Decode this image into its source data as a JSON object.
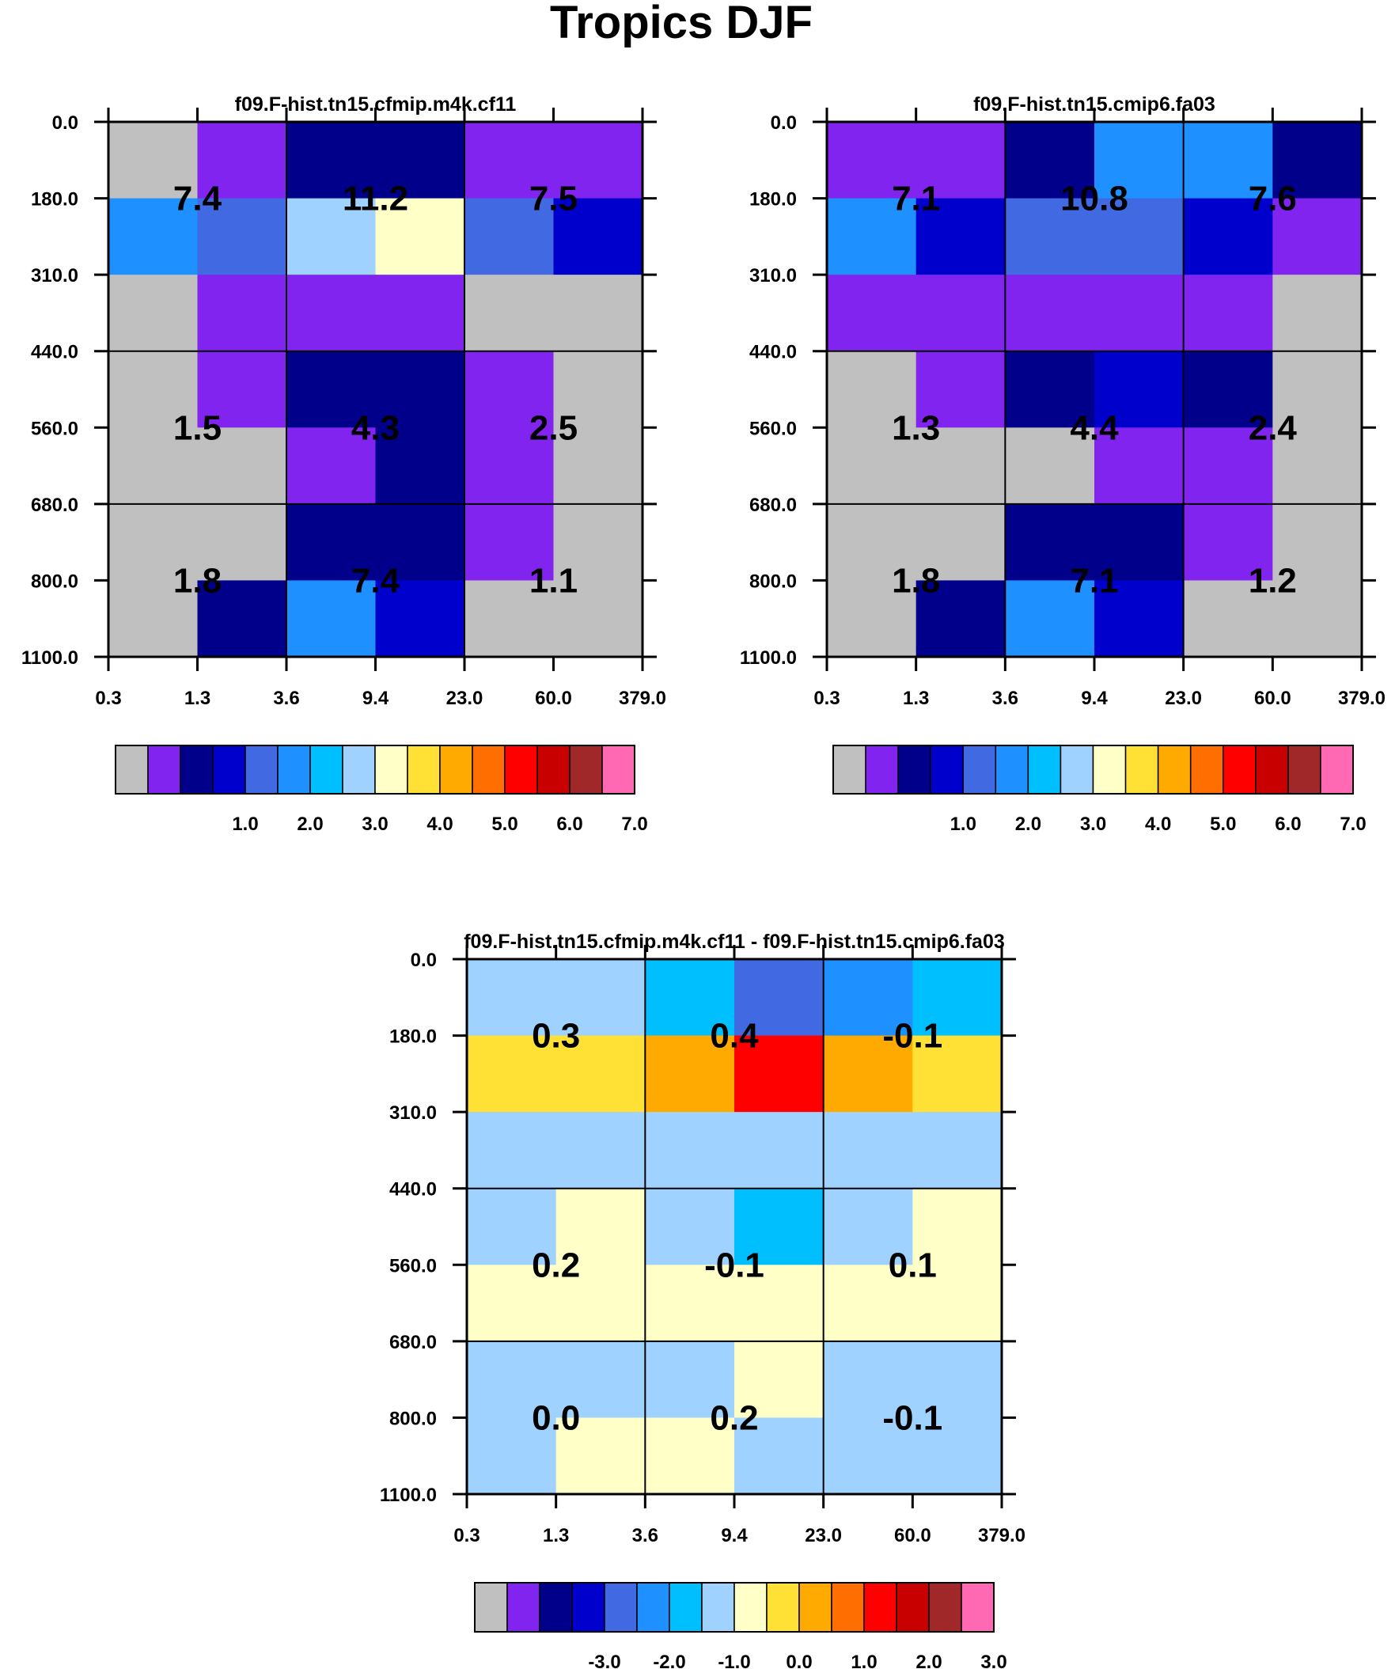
{
  "figure_title": "Tropics DJF",
  "chart_data": [
    {
      "type": "heatmap",
      "title": "f09.F-hist.tn15.cfmip.m4k.cf11",
      "x_ticks": [
        "0.3",
        "1.3",
        "3.6",
        "9.4",
        "23.0",
        "60.0",
        "379.0"
      ],
      "y_ticks": [
        "0.0",
        "180.0",
        "310.0",
        "440.0",
        "560.0",
        "680.0",
        "800.0",
        "1100.0"
      ],
      "color_bins": [
        [
          0,
          1,
          2,
          2,
          1,
          1
        ],
        [
          5,
          4,
          7,
          8,
          4,
          3
        ],
        [
          0,
          1,
          1,
          1,
          0,
          0
        ],
        [
          0,
          1,
          2,
          2,
          1,
          0
        ],
        [
          0,
          0,
          1,
          2,
          1,
          0
        ],
        [
          0,
          0,
          2,
          2,
          1,
          0
        ],
        [
          0,
          2,
          5,
          3,
          0,
          0
        ]
      ],
      "block_values": [
        [
          "7.4",
          "11.2",
          "7.5"
        ],
        [
          "1.5",
          "4.3",
          "2.5"
        ],
        [
          "1.8",
          "7.4",
          "1.1"
        ]
      ],
      "colorbar": {
        "colors": [
          "#c0c0c0",
          "#8224f0",
          "#00008b",
          "#0000cd",
          "#4169e1",
          "#1e90ff",
          "#00bfff",
          "#a0d2ff",
          "#ffffc8",
          "#ffe135",
          "#ffaa00",
          "#ff6e00",
          "#ff0000",
          "#c80000",
          "#a02828",
          "#ff69b4"
        ],
        "labels": [
          "1.0",
          "2.0",
          "3.0",
          "4.0",
          "5.0",
          "6.0",
          "7.0"
        ]
      }
    },
    {
      "type": "heatmap",
      "title": "f09.F-hist.tn15.cmip6.fa03",
      "x_ticks": [
        "0.3",
        "1.3",
        "3.6",
        "9.4",
        "23.0",
        "60.0",
        "379.0"
      ],
      "y_ticks": [
        "0.0",
        "180.0",
        "310.0",
        "440.0",
        "560.0",
        "680.0",
        "800.0",
        "1100.0"
      ],
      "color_bins": [
        [
          1,
          1,
          2,
          5,
          5,
          2
        ],
        [
          5,
          3,
          4,
          4,
          3,
          1
        ],
        [
          1,
          1,
          1,
          1,
          1,
          0
        ],
        [
          0,
          1,
          2,
          3,
          2,
          0
        ],
        [
          0,
          0,
          0,
          1,
          1,
          0
        ],
        [
          0,
          0,
          2,
          2,
          1,
          0
        ],
        [
          0,
          2,
          5,
          3,
          0,
          0
        ]
      ],
      "block_values": [
        [
          "7.1",
          "10.8",
          "7.6"
        ],
        [
          "1.3",
          "4.4",
          "2.4"
        ],
        [
          "1.8",
          "7.1",
          "1.2"
        ]
      ],
      "colorbar": {
        "colors": [
          "#c0c0c0",
          "#8224f0",
          "#00008b",
          "#0000cd",
          "#4169e1",
          "#1e90ff",
          "#00bfff",
          "#a0d2ff",
          "#ffffc8",
          "#ffe135",
          "#ffaa00",
          "#ff6e00",
          "#ff0000",
          "#c80000",
          "#a02828",
          "#ff69b4"
        ],
        "labels": [
          "1.0",
          "2.0",
          "3.0",
          "4.0",
          "5.0",
          "6.0",
          "7.0"
        ]
      }
    },
    {
      "type": "heatmap",
      "title": "f09.F-hist.tn15.cfmip.m4k.cf11 - f09.F-hist.tn15.cmip6.fa03",
      "x_ticks": [
        "0.3",
        "1.3",
        "3.6",
        "9.4",
        "23.0",
        "60.0",
        "379.0"
      ],
      "y_ticks": [
        "0.0",
        "180.0",
        "310.0",
        "440.0",
        "560.0",
        "680.0",
        "800.0",
        "1100.0"
      ],
      "color_bins": [
        [
          7,
          7,
          6,
          4,
          5,
          6
        ],
        [
          9,
          9,
          10,
          12,
          10,
          9
        ],
        [
          7,
          7,
          7,
          7,
          7,
          7
        ],
        [
          7,
          8,
          7,
          6,
          7,
          8
        ],
        [
          8,
          8,
          8,
          8,
          8,
          8
        ],
        [
          7,
          7,
          7,
          8,
          7,
          7
        ],
        [
          7,
          8,
          8,
          7,
          7,
          7
        ]
      ],
      "block_values": [
        [
          "0.3",
          "0.4",
          "-0.1"
        ],
        [
          "0.2",
          "-0.1",
          "0.1"
        ],
        [
          "0.0",
          "0.2",
          "-0.1"
        ]
      ],
      "colorbar": {
        "colors": [
          "#c0c0c0",
          "#8224f0",
          "#00008b",
          "#0000cd",
          "#4169e1",
          "#1e90ff",
          "#00bfff",
          "#a0d2ff",
          "#ffffc8",
          "#ffe135",
          "#ffaa00",
          "#ff6e00",
          "#ff0000",
          "#c80000",
          "#a02828",
          "#ff69b4"
        ],
        "labels": [
          "-3.0",
          "-2.0",
          "-1.0",
          "0.0",
          "1.0",
          "2.0",
          "3.0"
        ]
      }
    }
  ]
}
